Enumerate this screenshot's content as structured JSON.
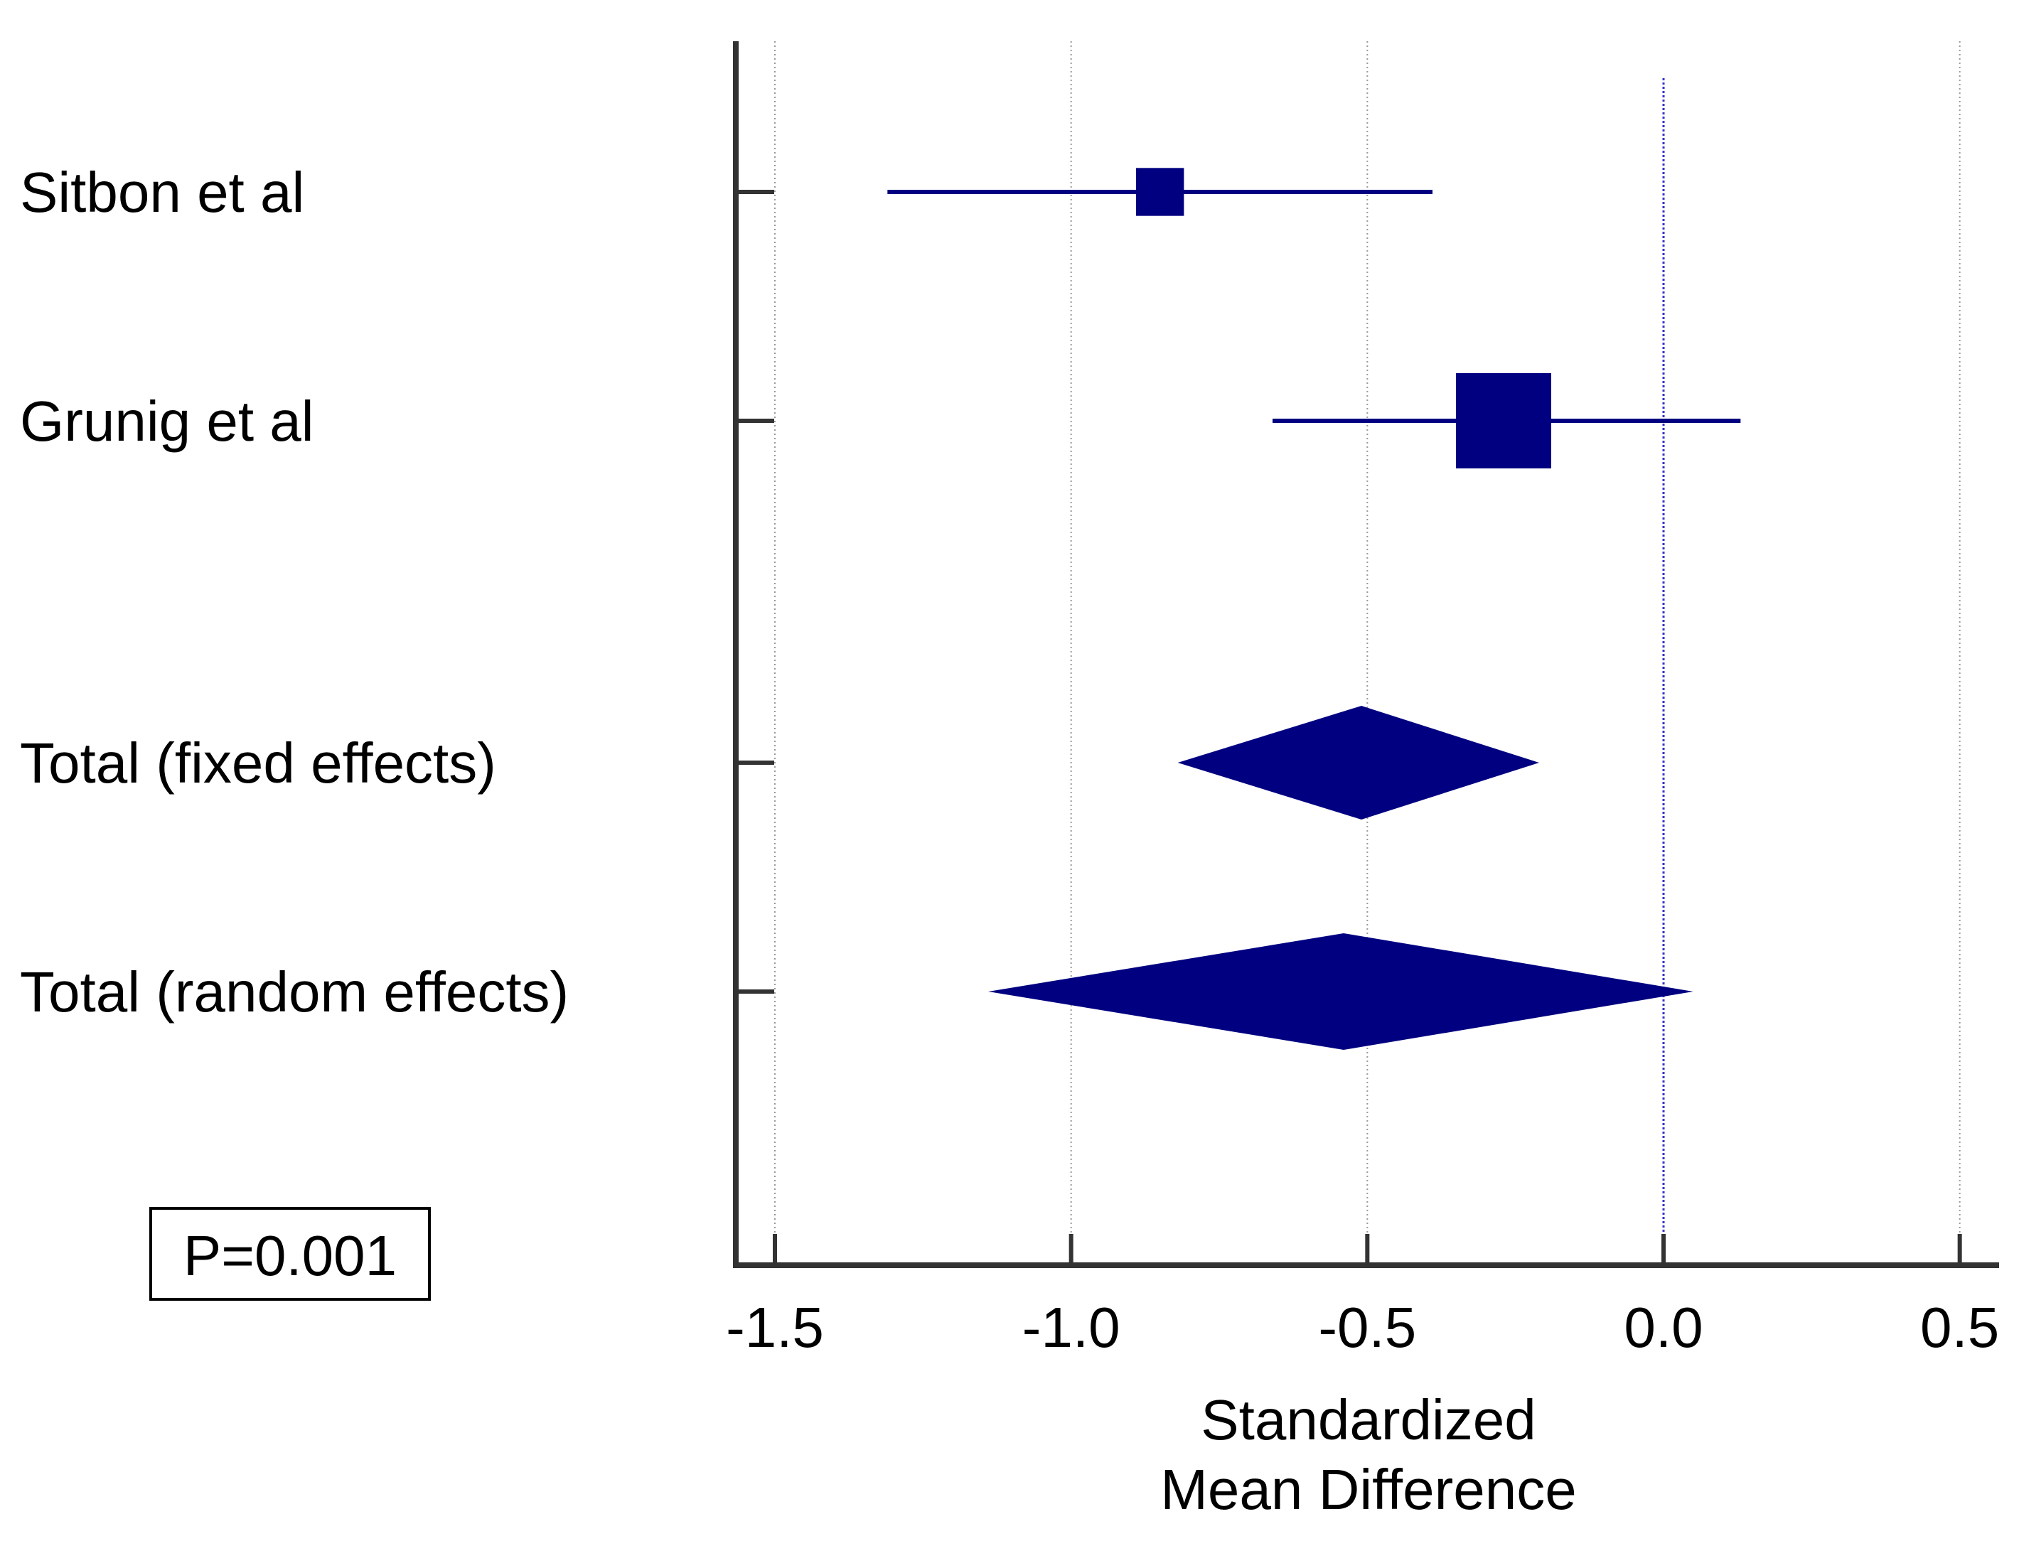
{
  "chart_data": {
    "type": "forest",
    "title": "",
    "xlabel_lines": [
      "Standardized",
      "Mean Difference"
    ],
    "xlim": [
      -1.57,
      0.57
    ],
    "ticks": [
      -1.5,
      -1.0,
      -0.5,
      0.0,
      0.5
    ],
    "tick_labels": [
      "-1.5",
      "-1.0",
      "-0.5",
      "0.0",
      "0.5"
    ],
    "reference_line": 0.0,
    "grid": true,
    "studies": [
      {
        "label": "Sitbon et al",
        "estimate": -0.85,
        "lower": -1.31,
        "upper": -0.39,
        "weight": 0.32
      },
      {
        "label": "Grunig et al",
        "estimate": -0.27,
        "lower": -0.66,
        "upper": 0.13,
        "weight": 1.0
      }
    ],
    "totals": [
      {
        "label": "Total (fixed effects)",
        "estimate": -0.51,
        "lower": -0.82,
        "upper": -0.21
      },
      {
        "label": "Total (random effects)",
        "estimate": -0.54,
        "lower": -1.14,
        "upper": 0.05
      }
    ],
    "p_value_label": "P=0.001"
  },
  "colors": {
    "marker": "#000080",
    "reference_line": "#3333cc",
    "grid": "#999999",
    "axis": "#333333"
  }
}
